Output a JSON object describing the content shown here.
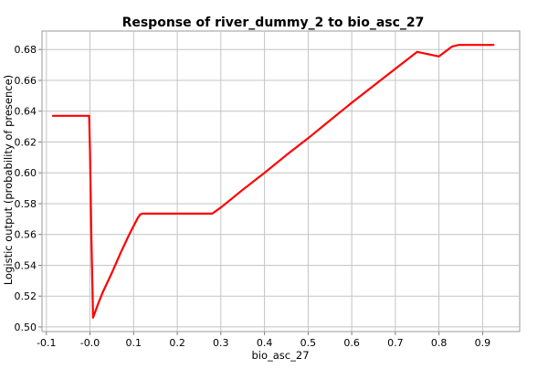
{
  "chart_data": {
    "type": "line",
    "title": "Response of river_dummy_2 to bio_asc_27",
    "xlabel": "bio_asc_27",
    "ylabel": "Logistic output (probability of presence)",
    "xlim": [
      -0.11,
      0.985
    ],
    "ylim": [
      0.497,
      0.692
    ],
    "x_ticks": [
      -0.1,
      0.0,
      0.1,
      0.2,
      0.3,
      0.4,
      0.5,
      0.6,
      0.7,
      0.8,
      0.9
    ],
    "x_tick_labels": [
      "-0.1",
      "-0.0",
      "0.1",
      "0.2",
      "0.3",
      "0.4",
      "0.5",
      "0.6",
      "0.7",
      "0.8",
      "0.9"
    ],
    "y_ticks": [
      0.5,
      0.52,
      0.54,
      0.56,
      0.58,
      0.6,
      0.62,
      0.64,
      0.66,
      0.68
    ],
    "y_tick_labels": [
      "0.50",
      "0.52",
      "0.54",
      "0.56",
      "0.58",
      "0.60",
      "0.62",
      "0.64",
      "0.66",
      "0.68"
    ],
    "grid": true,
    "series": [
      {
        "color": "#ff0000",
        "x": [
          -0.085,
          -0.002,
          0.0,
          0.003,
          0.007,
          0.02,
          0.03,
          0.05,
          0.07,
          0.09,
          0.11,
          0.115,
          0.12,
          0.15,
          0.2,
          0.25,
          0.28,
          0.3,
          0.35,
          0.4,
          0.45,
          0.5,
          0.55,
          0.6,
          0.65,
          0.7,
          0.75,
          0.8,
          0.83,
          0.845,
          0.9,
          0.925
        ],
        "y": [
          0.637,
          0.637,
          0.615,
          0.56,
          0.506,
          0.516,
          0.523,
          0.535,
          0.548,
          0.56,
          0.571,
          0.573,
          0.5735,
          0.5735,
          0.5735,
          0.5735,
          0.5735,
          0.5775,
          0.589,
          0.6,
          0.6115,
          0.6225,
          0.634,
          0.6455,
          0.6565,
          0.6675,
          0.6785,
          0.6755,
          0.682,
          0.683,
          0.683,
          0.683
        ]
      }
    ]
  }
}
